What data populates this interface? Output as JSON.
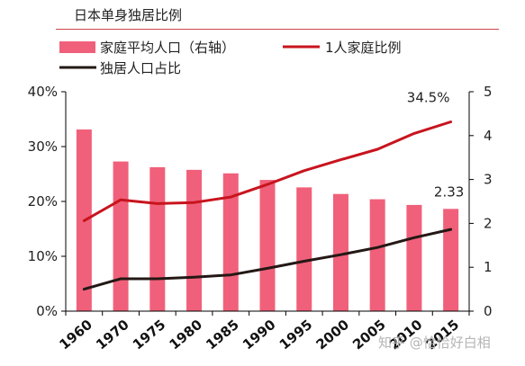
{
  "chart_data": {
    "type": "bar",
    "title": "日本单身独居比例",
    "categories": [
      "1960",
      "1970",
      "1975",
      "1980",
      "1985",
      "1990",
      "1995",
      "2000",
      "2005",
      "2010",
      "2015"
    ],
    "series": [
      {
        "name": "家庭平均人口（右轴）",
        "type": "bar",
        "axis": "right",
        "values": [
          4.14,
          3.41,
          3.28,
          3.22,
          3.14,
          2.99,
          2.82,
          2.67,
          2.55,
          2.42,
          2.33
        ],
        "color": "#f0607a"
      },
      {
        "name": "1人家庭比例",
        "type": "line",
        "axis": "left",
        "values": [
          16.5,
          20.3,
          19.6,
          19.8,
          20.8,
          23.1,
          25.6,
          27.6,
          29.5,
          32.4,
          34.5
        ],
        "color": "#c8141e"
      },
      {
        "name": "独居人口占比",
        "type": "line",
        "axis": "left",
        "values": [
          4.0,
          5.9,
          5.9,
          6.2,
          6.6,
          7.8,
          9.1,
          10.3,
          11.6,
          13.4,
          14.9
        ],
        "color": "#231815"
      }
    ],
    "y_left": {
      "ticks": [
        "0%",
        "10%",
        "20%",
        "30%",
        "40%"
      ],
      "range": [
        0,
        40
      ]
    },
    "y_right": {
      "ticks": [
        "0",
        "1",
        "2",
        "3",
        "4",
        "5"
      ],
      "range": [
        0,
        5
      ]
    },
    "annotations": [
      "34.5%",
      "2.33"
    ],
    "grid": false,
    "legend_position": "top"
  },
  "watermark": "知乎 @恰恰好白相"
}
